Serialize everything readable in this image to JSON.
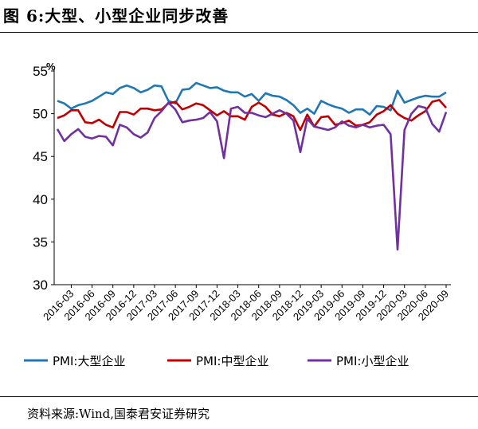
{
  "figure_title": "图 6:大型、小型企业同步改善",
  "source_note": "资料来源:Wind,国泰君安证券研究",
  "chart_data": {
    "type": "line",
    "title": "",
    "xlabel": "",
    "ylabel": "%",
    "ylim": [
      30,
      55
    ],
    "yticks": [
      30,
      35,
      40,
      45,
      50,
      55
    ],
    "grid": false,
    "legend_position": "bottom",
    "x_tick_labels": [
      "2016-03",
      "2016-06",
      "2016-09",
      "2016-12",
      "2017-03",
      "2017-06",
      "2017-09",
      "2017-12",
      "2018-03",
      "2018-06",
      "2018-09",
      "2018-12",
      "2019-03",
      "2019-06",
      "2019-09",
      "2019-12",
      "2020-03",
      "2020-06",
      "2020-09"
    ],
    "x": [
      "2016-01",
      "2016-02",
      "2016-03",
      "2016-04",
      "2016-05",
      "2016-06",
      "2016-07",
      "2016-08",
      "2016-09",
      "2016-10",
      "2016-11",
      "2016-12",
      "2017-01",
      "2017-02",
      "2017-03",
      "2017-04",
      "2017-05",
      "2017-06",
      "2017-07",
      "2017-08",
      "2017-09",
      "2017-10",
      "2017-11",
      "2017-12",
      "2018-01",
      "2018-02",
      "2018-03",
      "2018-04",
      "2018-05",
      "2018-06",
      "2018-07",
      "2018-08",
      "2018-09",
      "2018-10",
      "2018-11",
      "2018-12",
      "2019-01",
      "2019-02",
      "2019-03",
      "2019-04",
      "2019-05",
      "2019-06",
      "2019-07",
      "2019-08",
      "2019-09",
      "2019-10",
      "2019-11",
      "2019-12",
      "2020-01",
      "2020-02",
      "2020-03",
      "2020-04",
      "2020-05",
      "2020-06",
      "2020-07",
      "2020-08",
      "2020-09"
    ],
    "series": [
      {
        "name": "PMI:大型企业",
        "color": "#1f77b4",
        "values": [
          51.5,
          51.2,
          50.6,
          51.0,
          51.2,
          51.5,
          52.0,
          52.5,
          52.3,
          53.0,
          53.3,
          53.0,
          52.5,
          52.8,
          53.3,
          53.2,
          51.5,
          51.2,
          52.8,
          52.9,
          53.6,
          53.3,
          53.0,
          53.1,
          52.7,
          52.5,
          52.5,
          52.0,
          52.3,
          51.5,
          52.4,
          52.1,
          52.0,
          51.6,
          51.0,
          50.1,
          50.6,
          50.0,
          51.5,
          51.1,
          50.8,
          50.6,
          50.1,
          50.5,
          50.5,
          49.9,
          50.9,
          50.8,
          50.4,
          52.7,
          51.3,
          51.6,
          51.9,
          52.1,
          52.0,
          52.0,
          52.5
        ]
      },
      {
        "name": "PMI:中型企业",
        "color": "#c00000",
        "values": [
          49.5,
          49.8,
          50.4,
          50.4,
          49.0,
          48.9,
          49.3,
          48.7,
          48.4,
          50.2,
          50.2,
          49.9,
          50.6,
          50.6,
          50.4,
          50.5,
          51.2,
          51.4,
          50.5,
          50.8,
          51.2,
          51.0,
          50.4,
          49.8,
          50.3,
          49.7,
          49.7,
          49.3,
          50.8,
          51.3,
          50.8,
          49.9,
          49.7,
          50.1,
          49.7,
          48.1,
          49.9,
          48.5,
          49.6,
          49.7,
          48.7,
          48.9,
          49.2,
          48.6,
          48.7,
          49.0,
          49.9,
          50.3,
          51.0,
          50.0,
          49.5,
          49.2,
          49.8,
          50.3,
          51.4,
          51.6,
          50.7
        ]
      },
      {
        "name": "PMI:小型企业",
        "color": "#7030a0",
        "values": [
          48.2,
          46.8,
          47.6,
          48.2,
          47.3,
          47.1,
          47.4,
          47.3,
          46.3,
          48.7,
          48.4,
          47.6,
          47.2,
          47.8,
          49.5,
          50.3,
          51.3,
          50.5,
          49.0,
          49.2,
          49.3,
          49.5,
          50.2,
          49.1,
          44.8,
          50.6,
          50.8,
          50.1,
          50.1,
          49.8,
          49.6,
          50.0,
          50.4,
          50.0,
          49.2,
          45.5,
          49.4,
          48.5,
          48.3,
          48.1,
          48.4,
          49.1,
          48.6,
          48.4,
          48.7,
          48.4,
          48.6,
          48.7,
          47.6,
          34.1,
          48.1,
          50.0,
          50.9,
          50.7,
          48.8,
          47.9,
          50.2
        ]
      }
    ]
  }
}
